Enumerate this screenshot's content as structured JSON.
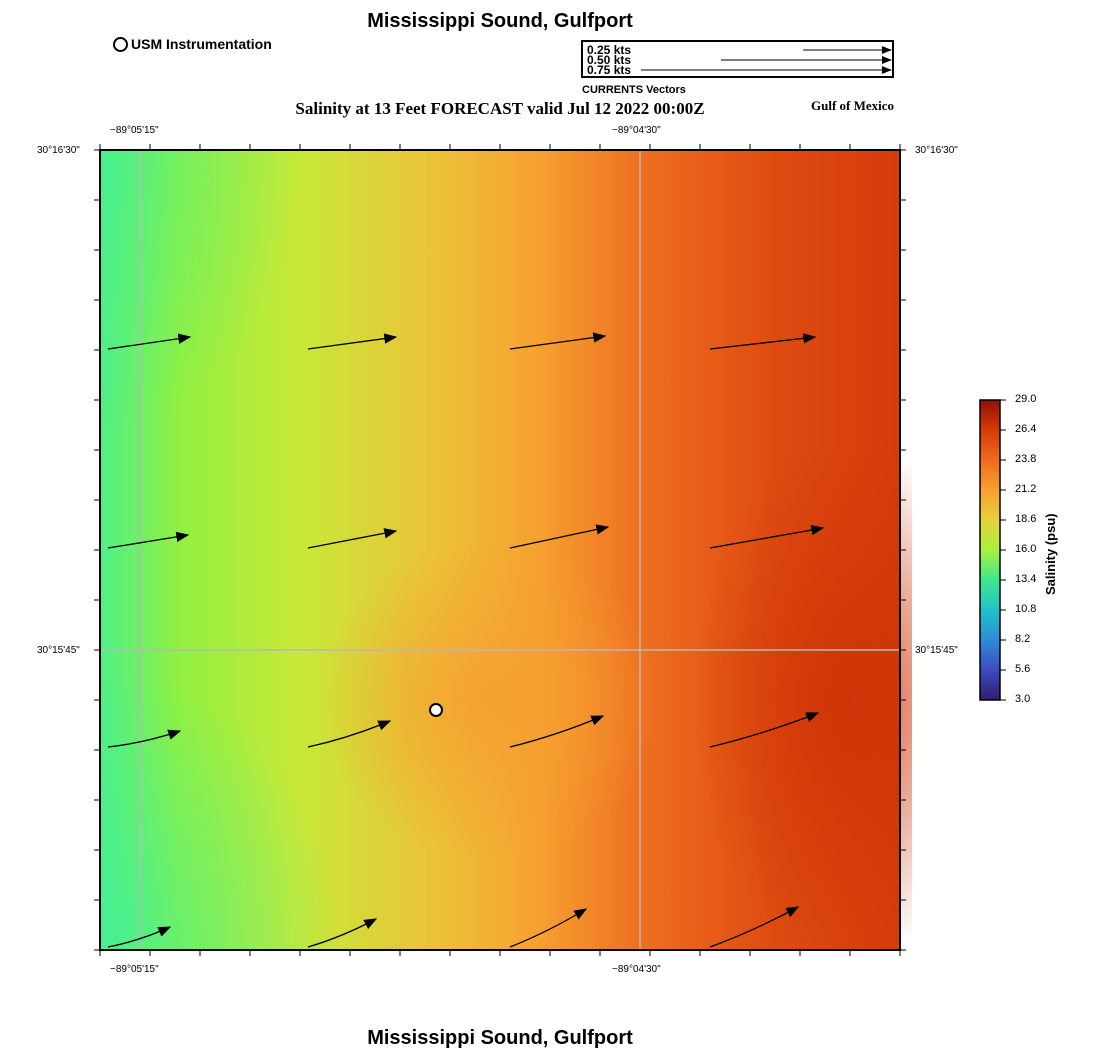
{
  "header": {
    "title": "Mississippi Sound, Gulfport",
    "subtitle": "Salinity at 13 Feet FORECAST valid Jul 12 2022 00:00Z",
    "region_label": "Gulf of Mexico",
    "footer_title": "Mississippi Sound, Gulfport"
  },
  "legend": {
    "station_label": "USM Instrumentation",
    "vector_scale": [
      "0.25 kts",
      "0.50 kts",
      "0.75 kts"
    ],
    "vector_caption": "CURRENTS Vectors"
  },
  "axes": {
    "lon_labels": [
      "−89°05'15\"",
      "−89°04'30\""
    ],
    "lat_labels": [
      "30°16'30\"",
      "30°15'45\""
    ]
  },
  "colorbar": {
    "title": "Salinity (psu)",
    "ticks": [
      "29.0",
      "26.4",
      "23.8",
      "21.2",
      "18.6",
      "16.0",
      "13.4",
      "10.8",
      "8.2",
      "5.6",
      "3.0"
    ],
    "colors": [
      "#2d1e6e",
      "#3b4cc0",
      "#2e8bd8",
      "#1fc3c8",
      "#3fe890",
      "#a8f040",
      "#e6d03c",
      "#f8a030",
      "#f06a20",
      "#d83a0a",
      "#901008"
    ]
  },
  "map": {
    "vectors_rows": 4,
    "vectors_cols": 4
  }
}
